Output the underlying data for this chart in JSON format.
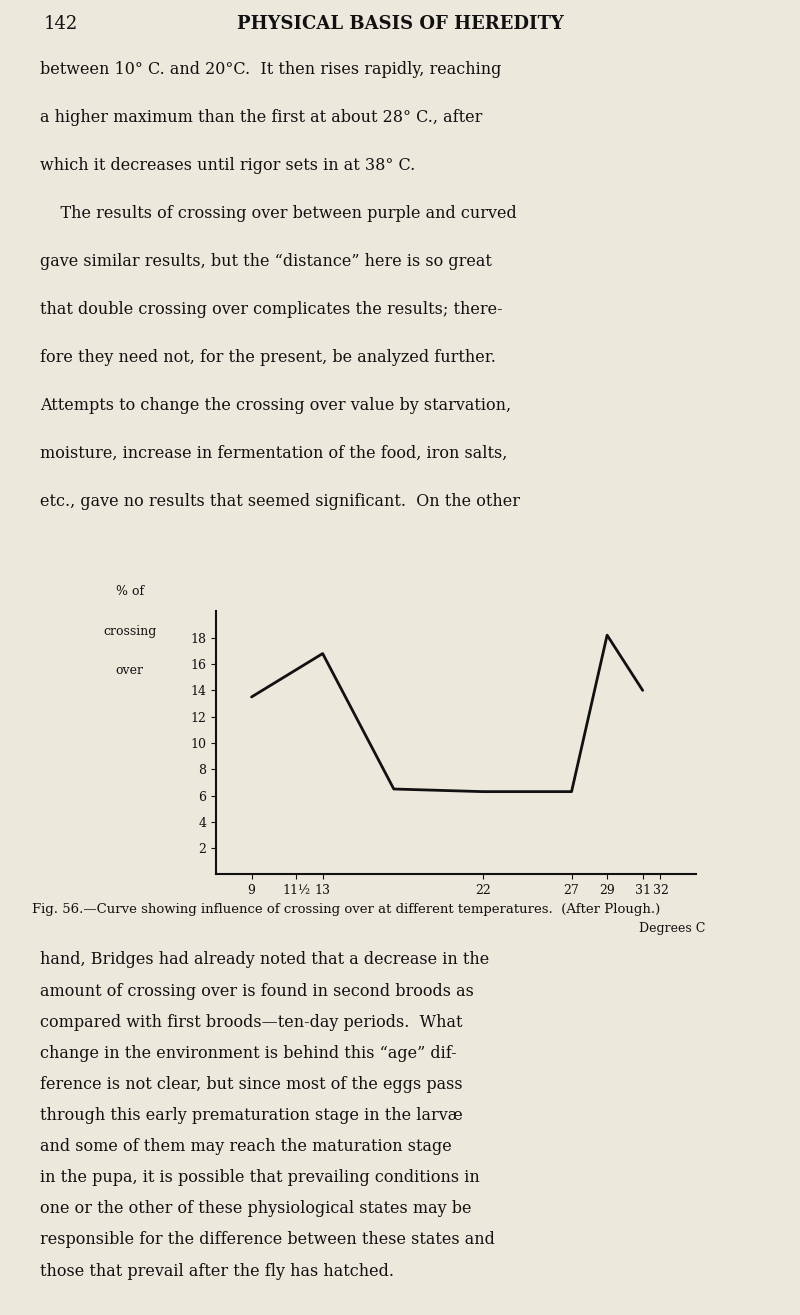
{
  "bg_color": "#ede8dc",
  "text_color": "#111111",
  "line_color": "#111111",
  "page_number": "142",
  "page_title": "PHYSICAL BASIS OF HEREDITY",
  "top_lines": [
    "between 10° C. and 20°C.  It then rises rapidly, reaching",
    "a higher maximum than the first at about 28° C., after",
    "which it decreases until rigor sets in at 38° C.",
    "    The results of crossing over between purple and curved",
    "gave similar results, but the “distance” here is so great",
    "that double crossing over complicates the results; there-",
    "fore they need not, for the present, be analyzed further.",
    "Attempts to change the crossing over value by starvation,",
    "moisture, increase in fermentation of the food, iron salts,",
    "etc., gave no results that seemed significant.  On the other"
  ],
  "bottom_lines": [
    "hand, Bridges had already noted that a decrease in the",
    "amount of crossing over is found in second broods as",
    "compared with first broods—ten-day periods.  What",
    "change in the environment is behind this “age” dif-",
    "ference is not clear, but since most of the eggs pass",
    "through this early prematuration stage in the larvæ",
    "and some of them may reach the maturation stage",
    "in the pupa, it is possible that prevailing conditions in",
    "one or the other of these physiological states may be",
    "responsible for the difference between these states and",
    "those that prevail after the fly has hatched."
  ],
  "caption": "Fig. 56.—Curve showing influence of crossing over at different temperatures.  (After Plough.)",
  "ylabel_l1": "% of",
  "ylabel_l2": "crossing",
  "ylabel_l3": "over",
  "xlabel": "Degrees C",
  "curve_x": [
    9,
    13,
    17,
    22,
    25,
    27,
    29,
    31
  ],
  "curve_y": [
    13.5,
    16.8,
    6.5,
    6.3,
    6.3,
    6.3,
    18.2,
    14.0
  ],
  "yticks": [
    2,
    4,
    6,
    8,
    10,
    12,
    14,
    16,
    18
  ],
  "xtick_pos": [
    9,
    13,
    11.5,
    22,
    27,
    29,
    31,
    32
  ],
  "xtick_labels": [
    "9",
    "13",
    "11½",
    "22",
    "27",
    "29",
    "31",
    "32"
  ],
  "ylim": [
    0,
    20
  ],
  "xlim": [
    7,
    34
  ]
}
